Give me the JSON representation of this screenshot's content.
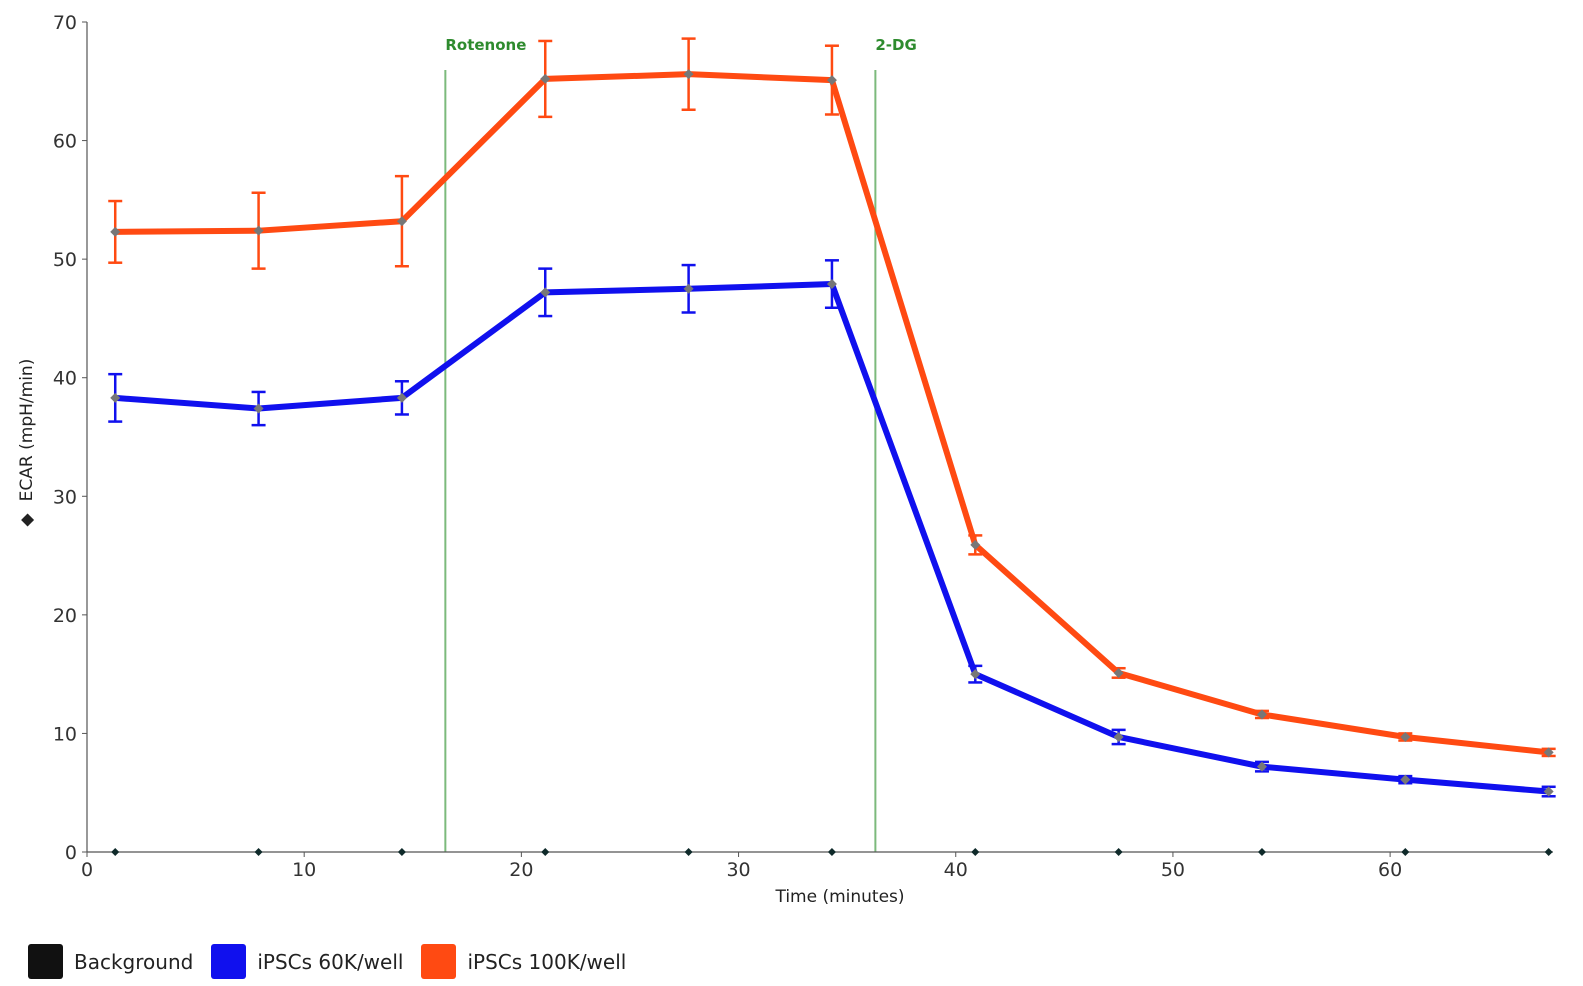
{
  "chart_data": {
    "type": "line",
    "xlabel": "Time (minutes)",
    "ylabel": "ECAR (mpH/min)",
    "ylabel_marker": "◆",
    "xlim": [
      0,
      67.5
    ],
    "ylim": [
      0,
      70
    ],
    "x_ticks": [
      0,
      10,
      20,
      30,
      40,
      50,
      60
    ],
    "y_ticks": [
      0,
      10,
      20,
      30,
      40,
      50,
      60,
      70
    ],
    "grid": false,
    "legend_position": "bottom-left",
    "x": [
      1.3,
      7.9,
      14.5,
      21.1,
      27.7,
      34.3,
      40.9,
      47.5,
      54.1,
      60.7,
      67.3
    ],
    "events": [
      {
        "label": "Rotenone",
        "x": 16.5
      },
      {
        "label": "2-DG",
        "x": 36.3
      }
    ],
    "series": [
      {
        "name": "Background",
        "color": "#111111",
        "values": [
          0,
          0,
          0,
          0,
          0,
          0,
          0,
          0,
          0,
          0,
          0
        ],
        "errors": [
          0,
          0,
          0,
          0,
          0,
          0,
          0,
          0,
          0,
          0,
          0
        ]
      },
      {
        "name": "iPSCs 60K/well",
        "color": "#1010ee",
        "values": [
          38.3,
          37.4,
          38.3,
          47.2,
          47.5,
          47.9,
          15.0,
          9.7,
          7.2,
          6.1,
          5.1
        ],
        "errors": [
          2.0,
          1.4,
          1.4,
          2.0,
          2.0,
          2.0,
          0.7,
          0.6,
          0.4,
          0.3,
          0.4
        ]
      },
      {
        "name": "iPSCs 100K/well",
        "color": "#ff4a12",
        "values": [
          52.3,
          52.4,
          53.2,
          65.2,
          65.6,
          65.1,
          25.9,
          15.1,
          11.6,
          9.7,
          8.4
        ],
        "errors": [
          2.6,
          3.2,
          3.8,
          3.2,
          3.0,
          2.9,
          0.8,
          0.4,
          0.3,
          0.3,
          0.3
        ]
      }
    ]
  }
}
